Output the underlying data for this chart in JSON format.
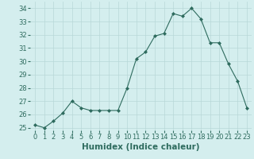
{
  "x": [
    0,
    1,
    2,
    3,
    4,
    5,
    6,
    7,
    8,
    9,
    10,
    11,
    12,
    13,
    14,
    15,
    16,
    17,
    18,
    19,
    20,
    21,
    22,
    23
  ],
  "y": [
    25.2,
    25.0,
    25.5,
    26.1,
    27.0,
    26.5,
    26.3,
    26.3,
    26.3,
    26.3,
    28.0,
    30.2,
    30.7,
    31.9,
    32.1,
    33.6,
    33.4,
    34.0,
    33.2,
    31.4,
    31.4,
    29.8,
    28.5,
    26.5
  ],
  "line_color": "#2e6b5e",
  "marker": "D",
  "marker_size": 2.0,
  "bg_color": "#d4eeee",
  "grid_color": "#b8d8d8",
  "xlabel": "Humidex (Indice chaleur)",
  "ylim": [
    24.8,
    34.5
  ],
  "yticks": [
    25,
    26,
    27,
    28,
    29,
    30,
    31,
    32,
    33,
    34
  ],
  "xticks": [
    0,
    1,
    2,
    3,
    4,
    5,
    6,
    7,
    8,
    9,
    10,
    11,
    12,
    13,
    14,
    15,
    16,
    17,
    18,
    19,
    20,
    21,
    22,
    23
  ],
  "xlim": [
    -0.5,
    23.5
  ],
  "tick_fontsize": 6,
  "xlabel_fontsize": 7.5,
  "label_color": "#2e6b5e"
}
